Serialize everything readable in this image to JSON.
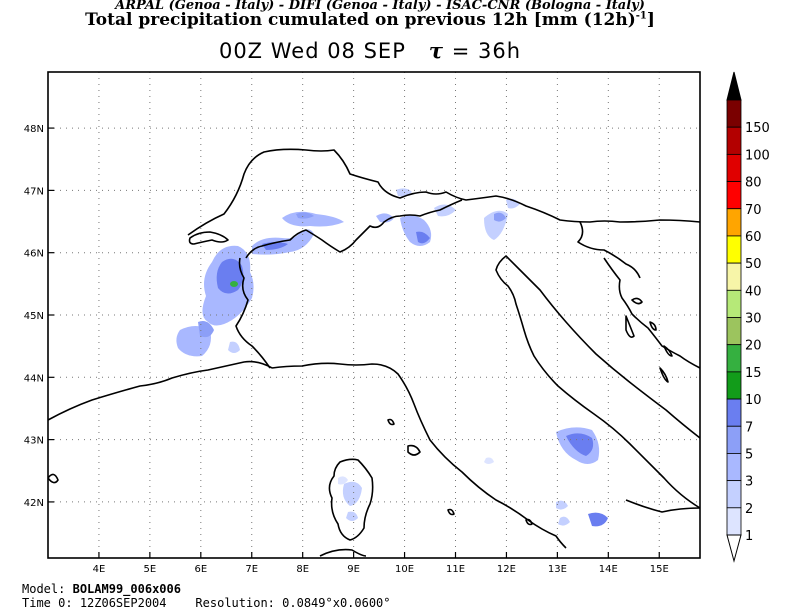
{
  "header": {
    "line1": "ARPAL (Genoa - Italy)  -  DIFI (Genoa - Italy)  -  ISAC-CNR (Bologna - Italy)",
    "line2_text": "Total precipitation cumulated on previous 12h [mm (12h)",
    "line2_sup": "-1",
    "line2_end": "]",
    "time_label": "00Z Wed 08 SEP",
    "tau_symbol": "τ",
    "tau_value": "= 36h"
  },
  "map": {
    "lon_ticks": [
      "4E",
      "5E",
      "6E",
      "7E",
      "8E",
      "9E",
      "10E",
      "11E",
      "12E",
      "13E",
      "14E",
      "15E"
    ],
    "lat_ticks": [
      "48N",
      "47N",
      "46N",
      "45N",
      "44N",
      "43N",
      "42N"
    ],
    "lon_range": [
      3.0,
      15.8
    ],
    "lat_range": [
      41.1,
      48.9
    ],
    "grid": "dotted"
  },
  "colorbar": {
    "levels": [
      "1",
      "2",
      "3",
      "5",
      "7",
      "10",
      "15",
      "20",
      "30",
      "40",
      "50",
      "60",
      "70",
      "80",
      "100",
      "150"
    ],
    "colors": [
      "#dde4ff",
      "#c4d0ff",
      "#a9b8ff",
      "#8c9ff7",
      "#6a7ef0",
      "#129c1a",
      "#35b040",
      "#9cc45e",
      "#b6e978",
      "#f7f5a8",
      "#ffff00",
      "#ffa500",
      "#ff0000",
      "#e00000",
      "#b30000",
      "#7a0000"
    ],
    "top_color": "#000000"
  },
  "footer": {
    "model_label": "Model:",
    "model_value": "BOLAM99_006x006",
    "time_label": "Time 0:",
    "time_value": "12Z06SEP2004",
    "res_label": "Resolution:",
    "res_value": "0.0849°x0.0600°"
  }
}
